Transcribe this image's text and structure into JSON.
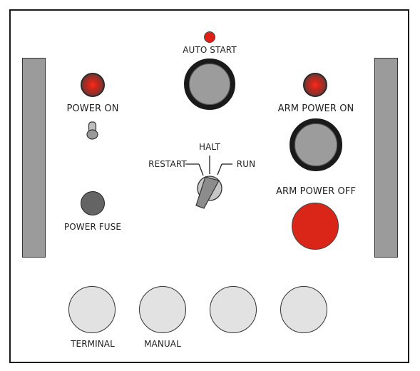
{
  "labels": {
    "auto_start": "AUTO START",
    "power_on": "POWER ON",
    "arm_power_on": "ARM POWER ON",
    "arm_power_off": "ARM POWER OFF",
    "power_fuse": "POWER FUSE",
    "halt": "HALT",
    "restart": "RESTART",
    "run": "RUN",
    "terminal": "TERMINAL",
    "manual": "MANUAL"
  },
  "colors": {
    "panel_border": "#1a1a1a",
    "side_bar": "#9b9b9b",
    "button_grey": "#9c9c9c",
    "mode_button": "#e2e2e2",
    "fuse": "#646464",
    "indicator_red": "#e02016",
    "stop_red": "#da2519"
  },
  "icons": {
    "power_on_lamp": "indicator-lamp-icon",
    "arm_power_on_lamp": "indicator-lamp-icon",
    "toggle": "toggle-switch-icon",
    "mode_selector": "rotary-key-switch-icon"
  },
  "mode_switch": {
    "positions": [
      "RESTART",
      "HALT",
      "RUN"
    ],
    "selected": "RESTART"
  }
}
